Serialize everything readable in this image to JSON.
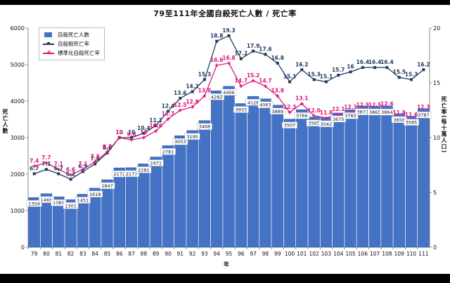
{
  "title": "79至111年全國自殺死亡人數 / 死亡率",
  "axis_left_label": "死亡人數",
  "axis_right_label": "死亡率(每十萬人口)",
  "x_axis_label": "年",
  "legend": {
    "deaths": "自殺死亡人數",
    "crude": "自殺粗死亡率",
    "standardized": "標準化自殺死亡率"
  },
  "colors": {
    "bar": "#4472C4",
    "bar_dark": "#2E56A8",
    "crude_line": "#1F3A5F",
    "std_line": "#E0157A"
  },
  "chart_data": {
    "type": "bar",
    "categories": [
      "79",
      "80",
      "81",
      "82",
      "83",
      "84",
      "85",
      "86",
      "87",
      "88",
      "89",
      "90",
      "91",
      "92",
      "93",
      "94",
      "95",
      "96",
      "97",
      "98",
      "99",
      "100",
      "101",
      "102",
      "103",
      "104",
      "105",
      "106",
      "107",
      "108",
      "109",
      "110",
      "111"
    ],
    "series": [
      {
        "name": "自殺死亡人數",
        "type": "bar",
        "axis": "left",
        "values": [
          1359,
          1465,
          1381,
          1301,
          1451,
          1618,
          1847,
          2172,
          2177,
          2281,
          2471,
          2781,
          3053,
          3195,
          3468,
          4282,
          4406,
          3933,
          4128,
          4063,
          3889,
          3507,
          3766,
          3565,
          3542,
          3675,
          3765,
          3871,
          3865,
          3864,
          3656,
          3585,
          3787
        ]
      },
      {
        "name": "自殺粗死亡率",
        "type": "line",
        "axis": "right",
        "values": [
          6.7,
          7.1,
          6.7,
          6.2,
          6.9,
          7.6,
          8.6,
          10,
          10,
          10.4,
          11.1,
          12.4,
          13.6,
          14.2,
          15.3,
          18.8,
          19.3,
          17.2,
          17.9,
          17.6,
          16.8,
          15.1,
          16.2,
          15.3,
          15.1,
          15.7,
          16,
          16.4,
          16.4,
          16.4,
          15.5,
          15.3,
          16.2
        ]
      },
      {
        "name": "標準化自殺死亡率",
        "type": "line",
        "axis": "right",
        "values": [
          7.4,
          7.7,
          7.1,
          6.6,
          7.1,
          7.8,
          8.7,
          10,
          9.8,
          10,
          10.6,
          11.7,
          12.5,
          12.8,
          13.8,
          16.6,
          16.8,
          14.7,
          15.2,
          14.7,
          13.8,
          12.3,
          13.1,
          12.0,
          11.8,
          12.1,
          12.3,
          12.5,
          12.5,
          12.6,
          11.8,
          11.6,
          12.3
        ]
      }
    ],
    "y_left": {
      "min": 0,
      "max": 6000,
      "ticks": [
        0,
        1000,
        2000,
        3000,
        4000,
        5000,
        6000
      ]
    },
    "y_right": {
      "min": 0,
      "max": 20,
      "ticks": [
        0,
        5,
        10,
        15,
        20
      ]
    },
    "legend_position": "top-left",
    "grid": false
  }
}
